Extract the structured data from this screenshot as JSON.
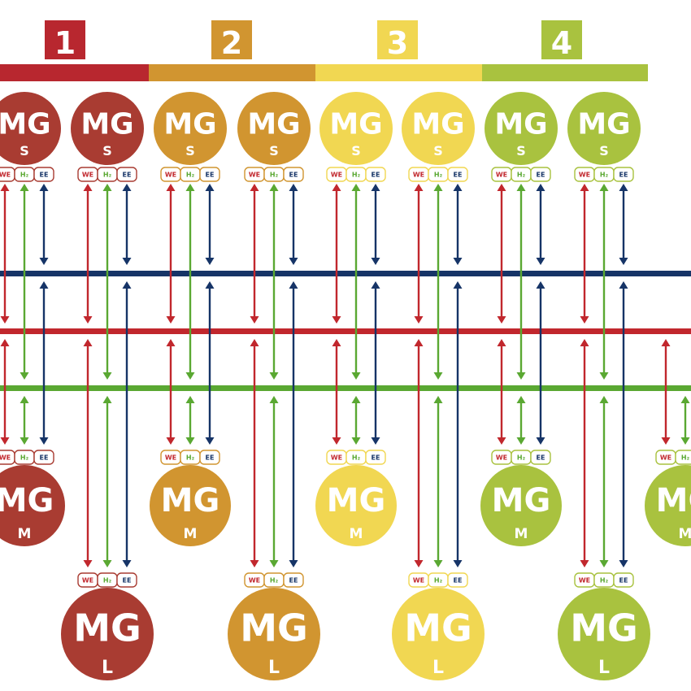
{
  "zones": [
    {
      "number": "1",
      "color": "#b8272f",
      "bubble": "#a93c32"
    },
    {
      "number": "2",
      "color": "#d19530",
      "bubble": "#d19530"
    },
    {
      "number": "3",
      "color": "#f1d752",
      "bubble": "#f1d752"
    },
    {
      "number": "4",
      "color": "#a9c23f",
      "bubble": "#a9c23f"
    }
  ],
  "bus_colors": {
    "EE": "#163467",
    "WE": "#c1272d",
    "H2": "#5aa832"
  },
  "port_labels": {
    "WE": "WE",
    "H2": "H₂",
    "EE": "EE"
  },
  "node_text": {
    "main": "MG",
    "S": "S",
    "M": "M",
    "L": "L"
  },
  "units": [
    {
      "size": "S",
      "zone": 0
    },
    {
      "size": "S",
      "zone": 0
    },
    {
      "size": "S",
      "zone": 1
    },
    {
      "size": "S",
      "zone": 1
    },
    {
      "size": "S",
      "zone": 2
    },
    {
      "size": "S",
      "zone": 2
    },
    {
      "size": "S",
      "zone": 3
    },
    {
      "size": "S",
      "zone": 3
    },
    {
      "size": "M",
      "zone": 0
    },
    {
      "size": "M",
      "zone": 1
    },
    {
      "size": "M",
      "zone": 2
    },
    {
      "size": "M",
      "zone": 3
    },
    {
      "size": "M",
      "zone": 3
    },
    {
      "size": "L",
      "zone": 0
    },
    {
      "size": "L",
      "zone": 1
    },
    {
      "size": "L",
      "zone": 2
    },
    {
      "size": "L",
      "zone": 3
    }
  ]
}
